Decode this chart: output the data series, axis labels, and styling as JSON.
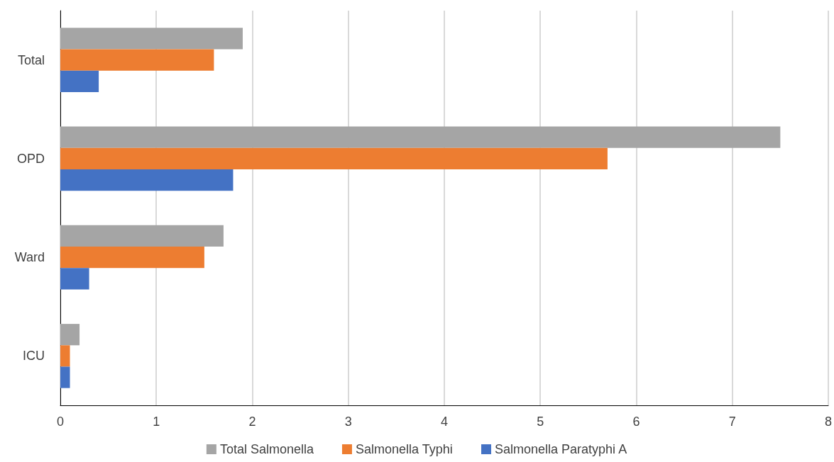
{
  "chart_data": {
    "type": "bar",
    "orientation": "horizontal",
    "categories": [
      "Total",
      "OPD",
      "Ward",
      "ICU"
    ],
    "series": [
      {
        "name": "Total Salmonella",
        "color": "#a5a5a5",
        "values": [
          1.9,
          7.5,
          1.7,
          0.2
        ]
      },
      {
        "name": "Salmonella Typhi",
        "color": "#ed7d31",
        "values": [
          1.6,
          5.7,
          1.5,
          0.1
        ]
      },
      {
        "name": "Salmonella Paratyphi A",
        "color": "#4472c4",
        "values": [
          0.4,
          1.8,
          0.3,
          0.1
        ]
      }
    ],
    "xlim": [
      0,
      8
    ],
    "xticks": [
      0,
      1,
      2,
      3,
      4,
      5,
      6,
      7,
      8
    ],
    "grid": "x",
    "legend": "bottom"
  }
}
